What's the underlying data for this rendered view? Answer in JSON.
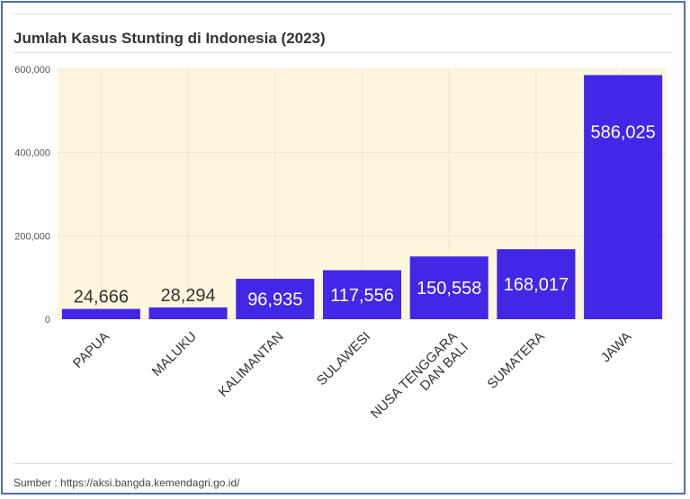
{
  "header": {
    "title": "Jumlah Kasus Stunting di Indonesia (2023)"
  },
  "footer": {
    "source": "Sumber : https://aksi.bangda.kemendagri.go.id/"
  },
  "colors": {
    "bar": "#4327e6",
    "plot_bg": "#fdf6dc",
    "grid": "#ece6cf",
    "label_inside": "#ffffff",
    "label_outside": "#333333"
  },
  "chart_data": {
    "type": "bar",
    "categories": [
      "PAPUA",
      "MALUKU",
      "KALIMANTAN",
      "SULAWESI",
      "NUSA TENGGARA DAN BALI",
      "SUMATERA",
      "JAWA"
    ],
    "category_lines": [
      [
        "PAPUA"
      ],
      [
        "MALUKU"
      ],
      [
        "KALIMANTAN"
      ],
      [
        "SULAWESI"
      ],
      [
        "NUSA TENGGARA",
        "DAN BALI"
      ],
      [
        "SUMATERA"
      ],
      [
        "JAWA"
      ]
    ],
    "values": [
      24666,
      28294,
      96935,
      117556,
      150558,
      168017,
      586025
    ],
    "value_labels": [
      "24,666",
      "28,294",
      "96,935",
      "117,556",
      "150,558",
      "168,017",
      "586,025"
    ],
    "ylim": [
      0,
      600000
    ],
    "yticks": [
      0,
      200000,
      400000,
      600000
    ],
    "ytick_labels": [
      "0",
      "200,000",
      "400,000",
      "600,000"
    ],
    "title": "Jumlah Kasus Stunting di Indonesia (2023)",
    "xlabel": "",
    "ylabel": "",
    "grid": true,
    "legend": "none"
  }
}
